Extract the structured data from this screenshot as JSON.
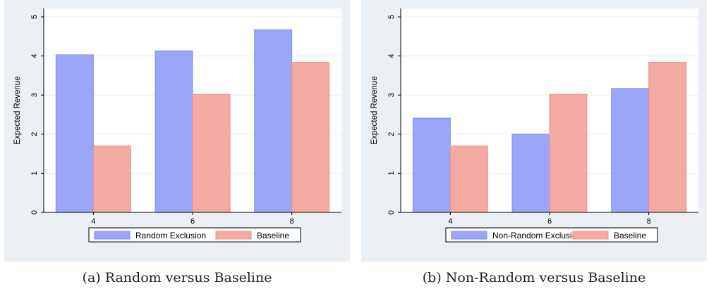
{
  "colors": {
    "panel_bg": "#eaf0f3",
    "plot_bg": "#ffffff",
    "grid": "#ececec",
    "series_1": "#9aa6f7",
    "series_1_edge": "#7f8df0",
    "series_2": "#f4aaa2",
    "series_2_edge": "#eb9389"
  },
  "chart_data": [
    {
      "type": "bar",
      "categories": [
        "4",
        "6",
        "8"
      ],
      "series": [
        {
          "name": "Random Exclusion",
          "values": [
            4.03,
            4.13,
            4.67
          ]
        },
        {
          "name": "Baseline",
          "values": [
            1.7,
            3.02,
            3.84
          ]
        }
      ],
      "ylabel": "Expected Revenue",
      "ylim": [
        0,
        5
      ],
      "yticks": [
        "0",
        "1",
        "2",
        "3",
        "4",
        "5"
      ],
      "grid": true,
      "legend_position": "bottom",
      "caption": "(a) Random versus Baseline"
    },
    {
      "type": "bar",
      "categories": [
        "4",
        "6",
        "8"
      ],
      "series": [
        {
          "name": "Non-Random Exclusion",
          "values": [
            2.41,
            2.0,
            3.17
          ]
        },
        {
          "name": "Baseline",
          "values": [
            1.7,
            3.02,
            3.84
          ]
        }
      ],
      "ylabel": "Expected Revenue",
      "ylim": [
        0,
        5
      ],
      "yticks": [
        "0",
        "1",
        "2",
        "3",
        "4",
        "5"
      ],
      "grid": true,
      "legend_position": "bottom",
      "caption": "(b) Non-Random versus Baseline"
    }
  ]
}
